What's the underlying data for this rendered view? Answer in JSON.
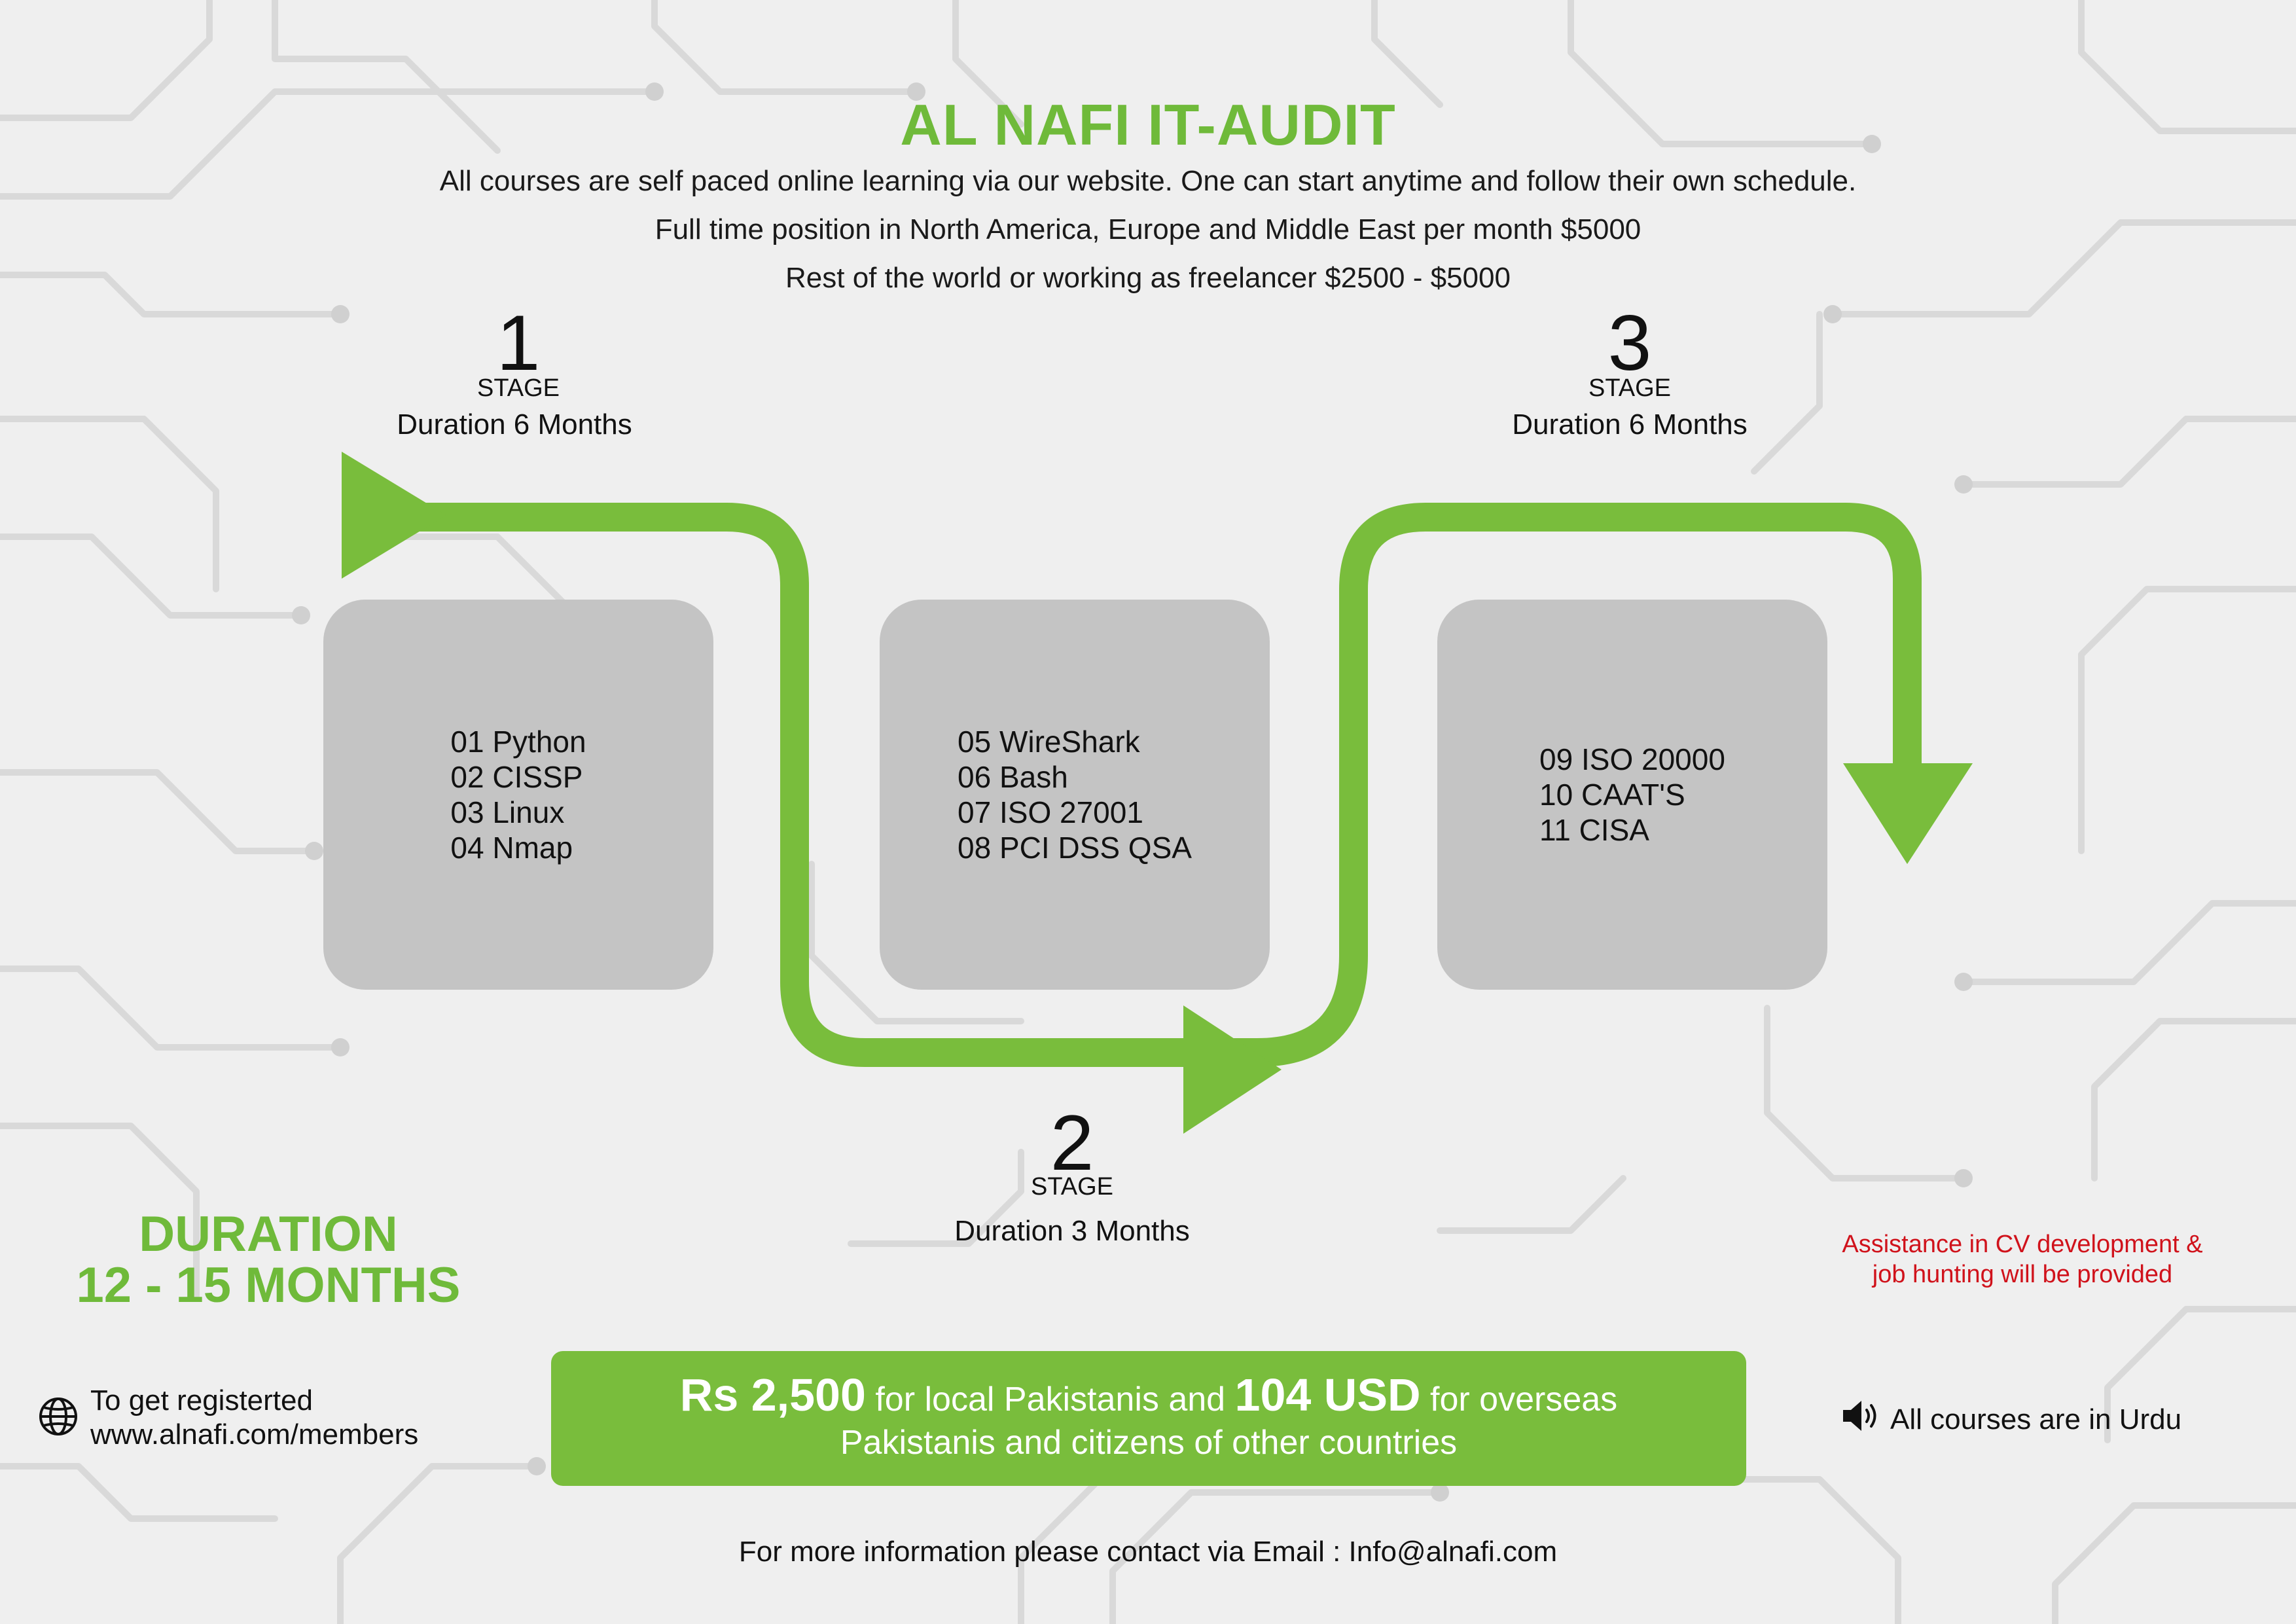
{
  "header": {
    "title": "AL NAFI IT-AUDIT",
    "lines": [
      "All courses are self paced online learning via our website. One can start anytime and follow their own schedule.",
      "Full time position in North America, Europe and Middle East per month $5000",
      "Rest of the world or working as freelancer $2500 - $5000"
    ]
  },
  "stages": [
    {
      "number": "1",
      "label": "STAGE",
      "duration": "Duration 6 Months",
      "courses": [
        "01 Python",
        "02 CISSP",
        "03 Linux",
        "04 Nmap"
      ]
    },
    {
      "number": "2",
      "label": "STAGE",
      "duration": "Duration 3 Months",
      "courses": [
        "05 WireShark",
        "06 Bash",
        "07 ISO 27001",
        "08 PCI DSS QSA"
      ]
    },
    {
      "number": "3",
      "label": "STAGE",
      "duration": "Duration 6 Months",
      "courses": [
        "09 ISO 20000",
        "10 CAAT'S",
        "11 CISA"
      ]
    }
  ],
  "total_duration": {
    "line1": "DURATION",
    "line2": "12 - 15 MONTHS"
  },
  "assistance": {
    "line1": "Assistance in CV development &",
    "line2": "job hunting will be provided"
  },
  "pricing": {
    "local_amount": "Rs 2,500",
    "local_text": "for local Pakistanis and",
    "overseas_amount": "104 USD",
    "overseas_text": "for overseas",
    "line2": "Pakistanis and citizens of other countries"
  },
  "registration": {
    "icon": "globe-icon",
    "line1": "To get registerted",
    "line2": "www.alnafi.com/members"
  },
  "language": {
    "icon": "speaker-icon",
    "text": "All courses are in Urdu"
  },
  "contact": {
    "text": "For more information please contact via Email : Info@alnafi.com"
  },
  "colors": {
    "accent_green": "#79bd3c",
    "title_green": "#6fba3a",
    "box_gray": "#c4c4c4",
    "background": "#efefef",
    "alert_red": "#d0121b"
  }
}
